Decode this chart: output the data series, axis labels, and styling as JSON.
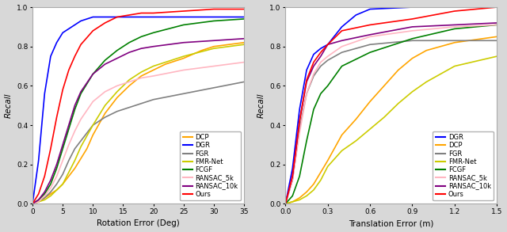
{
  "left": {
    "xlabel": "Rotation Error (Deg)",
    "ylabel": "Recall",
    "xlim": [
      0,
      35
    ],
    "ylim": [
      0,
      1.0
    ],
    "xticks": [
      0,
      5,
      10,
      15,
      20,
      25,
      30,
      35
    ],
    "yticks": [
      0.0,
      0.2,
      0.4,
      0.6,
      0.8,
      1.0
    ],
    "series": {
      "DCP": {
        "color": "#FFA500",
        "x": [
          0,
          1,
          2,
          3,
          4,
          5,
          6,
          7,
          8,
          9,
          10,
          12,
          14,
          16,
          18,
          20,
          22,
          25,
          28,
          30,
          35
        ],
        "y": [
          0.0,
          0.01,
          0.03,
          0.05,
          0.07,
          0.1,
          0.14,
          0.18,
          0.23,
          0.28,
          0.35,
          0.46,
          0.54,
          0.6,
          0.65,
          0.68,
          0.71,
          0.74,
          0.78,
          0.8,
          0.82
        ]
      },
      "DGR": {
        "color": "#0000FF",
        "x": [
          0,
          1,
          2,
          3,
          4,
          5,
          6,
          7,
          8,
          10,
          15,
          20,
          25,
          30,
          35
        ],
        "y": [
          0.0,
          0.22,
          0.56,
          0.75,
          0.82,
          0.87,
          0.89,
          0.91,
          0.93,
          0.95,
          0.95,
          0.95,
          0.95,
          0.95,
          0.95
        ]
      },
      "FGR": {
        "color": "#808080",
        "x": [
          0,
          1,
          2,
          3,
          4,
          5,
          6,
          7,
          8,
          10,
          12,
          14,
          16,
          18,
          20,
          25,
          30,
          35
        ],
        "y": [
          0.0,
          0.01,
          0.03,
          0.06,
          0.1,
          0.15,
          0.22,
          0.28,
          0.32,
          0.4,
          0.44,
          0.47,
          0.49,
          0.51,
          0.53,
          0.56,
          0.59,
          0.62
        ]
      },
      "FMR-Net": {
        "color": "#CCCC00",
        "x": [
          0,
          1,
          2,
          3,
          4,
          5,
          6,
          7,
          8,
          10,
          12,
          14,
          16,
          18,
          20,
          25,
          30,
          35
        ],
        "y": [
          0.0,
          0.01,
          0.02,
          0.04,
          0.07,
          0.1,
          0.16,
          0.22,
          0.29,
          0.4,
          0.5,
          0.57,
          0.63,
          0.67,
          0.7,
          0.75,
          0.79,
          0.81
        ]
      },
      "FCGF": {
        "color": "#008000",
        "x": [
          0,
          1,
          2,
          3,
          4,
          5,
          6,
          7,
          8,
          10,
          12,
          14,
          16,
          18,
          20,
          25,
          30,
          35
        ],
        "y": [
          0.0,
          0.02,
          0.05,
          0.1,
          0.18,
          0.28,
          0.38,
          0.48,
          0.56,
          0.66,
          0.73,
          0.78,
          0.82,
          0.85,
          0.87,
          0.91,
          0.93,
          0.94
        ]
      },
      "RANSAC_5k": {
        "color": "#FFB6C1",
        "x": [
          0,
          1,
          2,
          3,
          4,
          5,
          6,
          7,
          8,
          10,
          12,
          14,
          16,
          18,
          20,
          25,
          30,
          35
        ],
        "y": [
          0.0,
          0.01,
          0.04,
          0.08,
          0.14,
          0.22,
          0.3,
          0.37,
          0.43,
          0.52,
          0.57,
          0.6,
          0.62,
          0.64,
          0.65,
          0.68,
          0.7,
          0.72
        ]
      },
      "RANSAC_10k": {
        "color": "#800080",
        "x": [
          0,
          1,
          2,
          3,
          4,
          5,
          6,
          7,
          8,
          10,
          12,
          14,
          16,
          18,
          20,
          25,
          30,
          35
        ],
        "y": [
          0.0,
          0.02,
          0.06,
          0.12,
          0.2,
          0.3,
          0.4,
          0.5,
          0.57,
          0.66,
          0.71,
          0.74,
          0.77,
          0.79,
          0.8,
          0.82,
          0.83,
          0.84
        ]
      },
      "Ours": {
        "color": "#FF0000",
        "x": [
          0,
          1,
          2,
          3,
          4,
          5,
          6,
          7,
          8,
          10,
          12,
          14,
          16,
          18,
          20,
          25,
          30,
          35
        ],
        "y": [
          0.0,
          0.05,
          0.14,
          0.28,
          0.44,
          0.58,
          0.68,
          0.75,
          0.81,
          0.88,
          0.92,
          0.95,
          0.96,
          0.97,
          0.97,
          0.98,
          0.99,
          0.99
        ]
      }
    },
    "legend_order": [
      "DCP",
      "DGR",
      "FGR",
      "FMR-Net",
      "FCGF",
      "RANSAC_5k",
      "RANSAC_10k",
      "Ours"
    ]
  },
  "right": {
    "xlabel": "Translation Error (m)",
    "ylabel": "Recall",
    "xlim": [
      0.0,
      1.5
    ],
    "ylim": [
      0,
      1.0
    ],
    "xticks": [
      0.0,
      0.3,
      0.6,
      0.9,
      1.2,
      1.5
    ],
    "yticks": [
      0.0,
      0.2,
      0.4,
      0.6,
      0.8,
      1.0
    ],
    "series": {
      "DGR": {
        "color": "#0000FF",
        "x": [
          0.0,
          0.05,
          0.1,
          0.15,
          0.2,
          0.25,
          0.3,
          0.4,
          0.5,
          0.6,
          0.9,
          1.2,
          1.5
        ],
        "y": [
          0.0,
          0.18,
          0.48,
          0.68,
          0.76,
          0.79,
          0.81,
          0.9,
          0.96,
          0.99,
          1.0,
          1.0,
          1.0
        ]
      },
      "DCP": {
        "color": "#FFA500",
        "x": [
          0.0,
          0.05,
          0.1,
          0.15,
          0.2,
          0.25,
          0.3,
          0.4,
          0.5,
          0.6,
          0.7,
          0.8,
          0.9,
          1.0,
          1.2,
          1.5
        ],
        "y": [
          0.0,
          0.01,
          0.03,
          0.06,
          0.1,
          0.16,
          0.22,
          0.35,
          0.43,
          0.52,
          0.6,
          0.68,
          0.74,
          0.78,
          0.82,
          0.85
        ]
      },
      "FGR": {
        "color": "#808080",
        "x": [
          0.0,
          0.05,
          0.1,
          0.15,
          0.2,
          0.25,
          0.3,
          0.4,
          0.6,
          0.9,
          1.2,
          1.5
        ],
        "y": [
          0.0,
          0.12,
          0.38,
          0.56,
          0.65,
          0.7,
          0.73,
          0.77,
          0.81,
          0.83,
          0.83,
          0.83
        ]
      },
      "FMR-Net": {
        "color": "#CCCC00",
        "x": [
          0.0,
          0.05,
          0.1,
          0.15,
          0.2,
          0.25,
          0.3,
          0.4,
          0.5,
          0.6,
          0.7,
          0.8,
          0.9,
          1.0,
          1.2,
          1.5
        ],
        "y": [
          0.0,
          0.01,
          0.02,
          0.04,
          0.07,
          0.12,
          0.19,
          0.27,
          0.32,
          0.38,
          0.44,
          0.51,
          0.57,
          0.62,
          0.7,
          0.75
        ]
      },
      "FCGF": {
        "color": "#008000",
        "x": [
          0.0,
          0.05,
          0.1,
          0.15,
          0.2,
          0.25,
          0.3,
          0.4,
          0.6,
          0.9,
          1.2,
          1.5
        ],
        "y": [
          0.0,
          0.04,
          0.14,
          0.32,
          0.48,
          0.56,
          0.6,
          0.7,
          0.77,
          0.84,
          0.89,
          0.91
        ]
      },
      "RANSAC_5k": {
        "color": "#FFB6C1",
        "x": [
          0.0,
          0.05,
          0.1,
          0.15,
          0.2,
          0.25,
          0.3,
          0.4,
          0.6,
          0.9,
          1.2,
          1.5
        ],
        "y": [
          0.0,
          0.12,
          0.36,
          0.56,
          0.66,
          0.72,
          0.75,
          0.8,
          0.85,
          0.88,
          0.9,
          0.91
        ]
      },
      "RANSAC_10k": {
        "color": "#800080",
        "x": [
          0.0,
          0.05,
          0.1,
          0.15,
          0.2,
          0.25,
          0.3,
          0.4,
          0.6,
          0.9,
          1.2,
          1.5
        ],
        "y": [
          0.0,
          0.14,
          0.42,
          0.62,
          0.7,
          0.75,
          0.81,
          0.83,
          0.86,
          0.9,
          0.91,
          0.92
        ]
      },
      "Ours": {
        "color": "#FF0000",
        "x": [
          0.0,
          0.05,
          0.1,
          0.15,
          0.2,
          0.25,
          0.3,
          0.4,
          0.6,
          0.9,
          1.2,
          1.5
        ],
        "y": [
          0.0,
          0.14,
          0.42,
          0.63,
          0.72,
          0.77,
          0.81,
          0.88,
          0.91,
          0.94,
          0.98,
          1.0
        ]
      }
    },
    "legend_order": [
      "DGR",
      "DCP",
      "FGR",
      "FMR-Net",
      "FCGF",
      "RANSAC_5k",
      "RANSAC_10k",
      "Ours"
    ]
  },
  "fig_bg": "#D8D8D8",
  "ax_bg": "#FFFFFF",
  "linewidth": 1.2,
  "legend_fontsize": 6.0,
  "axis_fontsize": 7.5,
  "tick_fontsize": 6.5
}
